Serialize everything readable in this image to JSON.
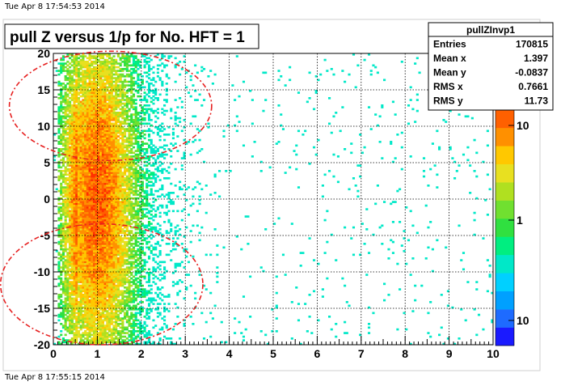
{
  "timestamp_top": "Tue Apr  8 17:54:53 2014",
  "timestamp_bottom": "Tue Apr  8 17:55:15 2014",
  "chart_data": {
    "type": "heatmap",
    "title": "pull Z versus 1/p for No. HFT = 1",
    "xlabel": "",
    "ylabel": "",
    "xlim": [
      0,
      10
    ],
    "ylim": [
      -20,
      20
    ],
    "x_ticks": [
      "0",
      "1",
      "2",
      "3",
      "4",
      "5",
      "6",
      "7",
      "8",
      "9",
      "10"
    ],
    "y_ticks": [
      "-20",
      "-15",
      "-10",
      "-5",
      "0",
      "5",
      "10",
      "15",
      "20"
    ],
    "grid": true,
    "stats_box": {
      "name": "pullZInvp1",
      "rows": [
        {
          "label": "Entries",
          "value": "170815"
        },
        {
          "label": "Mean x",
          "value": "1.397"
        },
        {
          "label": "Mean y",
          "value": "-0.0837"
        },
        {
          "label": "RMS x",
          "value": "0.7661"
        },
        {
          "label": "RMS y",
          "value": "11.73"
        }
      ]
    },
    "color_scale": {
      "log": true,
      "labels": [
        "10",
        "1",
        "10"
      ],
      "colors": [
        "#1a1aff",
        "#1e6bff",
        "#00a0ff",
        "#00d0ff",
        "#00e8c8",
        "#00ee80",
        "#30e040",
        "#70e030",
        "#b0e020",
        "#e8e020",
        "#ffc800",
        "#ff9000",
        "#ff6000",
        "#ff3000"
      ]
    },
    "annotations": [
      {
        "shape": "ellipse",
        "style": "dashed",
        "color": "#e62020",
        "center": [
          1.3,
          12.8
        ],
        "radii": [
          2.3,
          7.5
        ]
      },
      {
        "shape": "ellipse",
        "style": "dashed",
        "color": "#e62020",
        "center": [
          1.1,
          -11.7
        ],
        "radii": [
          2.3,
          8.3
        ]
      }
    ]
  }
}
